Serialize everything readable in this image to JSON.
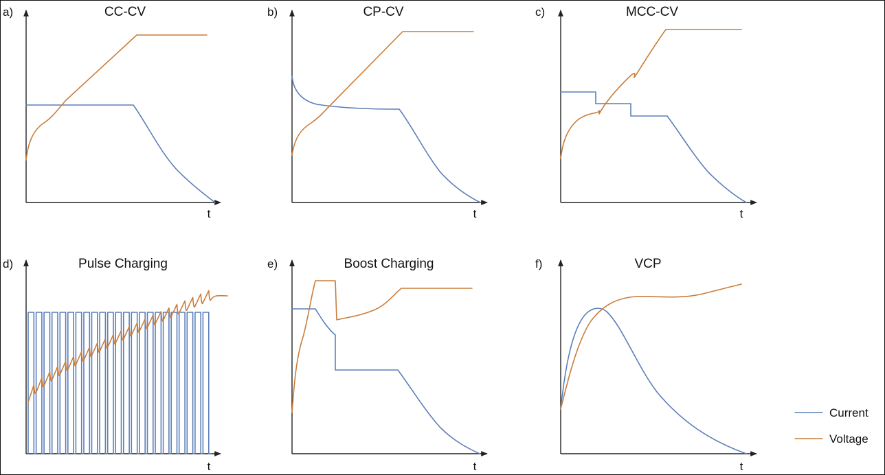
{
  "colors": {
    "current": "#5b7fb9",
    "voltage": "#c97d3a"
  },
  "panels": [
    {
      "letter": "a)",
      "title": "CC-CV",
      "x_label": "t"
    },
    {
      "letter": "b)",
      "title": "CP-CV",
      "x_label": "t"
    },
    {
      "letter": "c)",
      "title": "MCC-CV",
      "x_label": "t"
    },
    {
      "letter": "d)",
      "title": "Pulse Charging",
      "x_label": "t"
    },
    {
      "letter": "e)",
      "title": "Boost Charging",
      "x_label": "t"
    },
    {
      "letter": "f)",
      "title": "VCP",
      "x_label": "t"
    }
  ],
  "legend": {
    "current": "Current",
    "voltage": "Voltage"
  }
}
